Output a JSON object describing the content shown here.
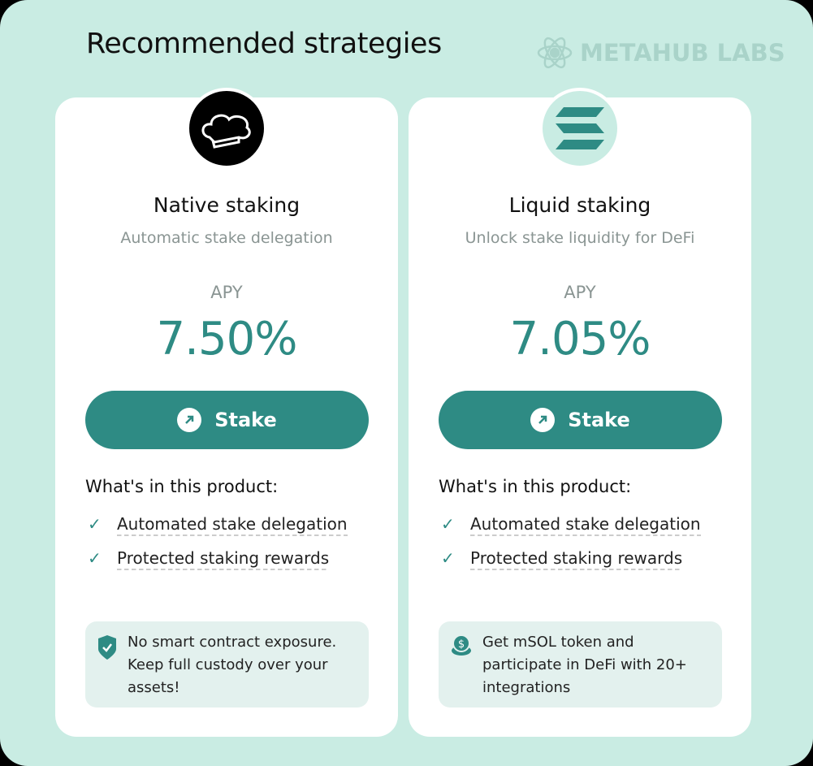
{
  "heading": "Recommended strategies",
  "brand": "METAHUB LABS",
  "colors": {
    "accent": "#2e8b84",
    "background": "#c9ece3"
  },
  "cards": [
    {
      "icon": "chef-hat-icon",
      "title": "Native staking",
      "subtitle": "Automatic stake delegation",
      "apy_label": "APY",
      "apy": "7.50%",
      "button": "Stake",
      "features_title": "What's in this product:",
      "features": [
        "Automated stake delegation",
        "Protected staking rewards"
      ],
      "info_icon": "shield-check-icon",
      "info": "No smart contract exposure. Keep full custody over your assets!"
    },
    {
      "icon": "solana-icon",
      "title": "Liquid staking",
      "subtitle": "Unlock stake liquidity for DeFi",
      "apy_label": "APY",
      "apy": "7.05%",
      "button": "Stake",
      "features_title": "What's in this product:",
      "features": [
        "Automated stake delegation",
        "Protected staking rewards"
      ],
      "info_icon": "coins-icon",
      "info": "Get mSOL token and participate in DeFi with 20+ integrations"
    }
  ]
}
